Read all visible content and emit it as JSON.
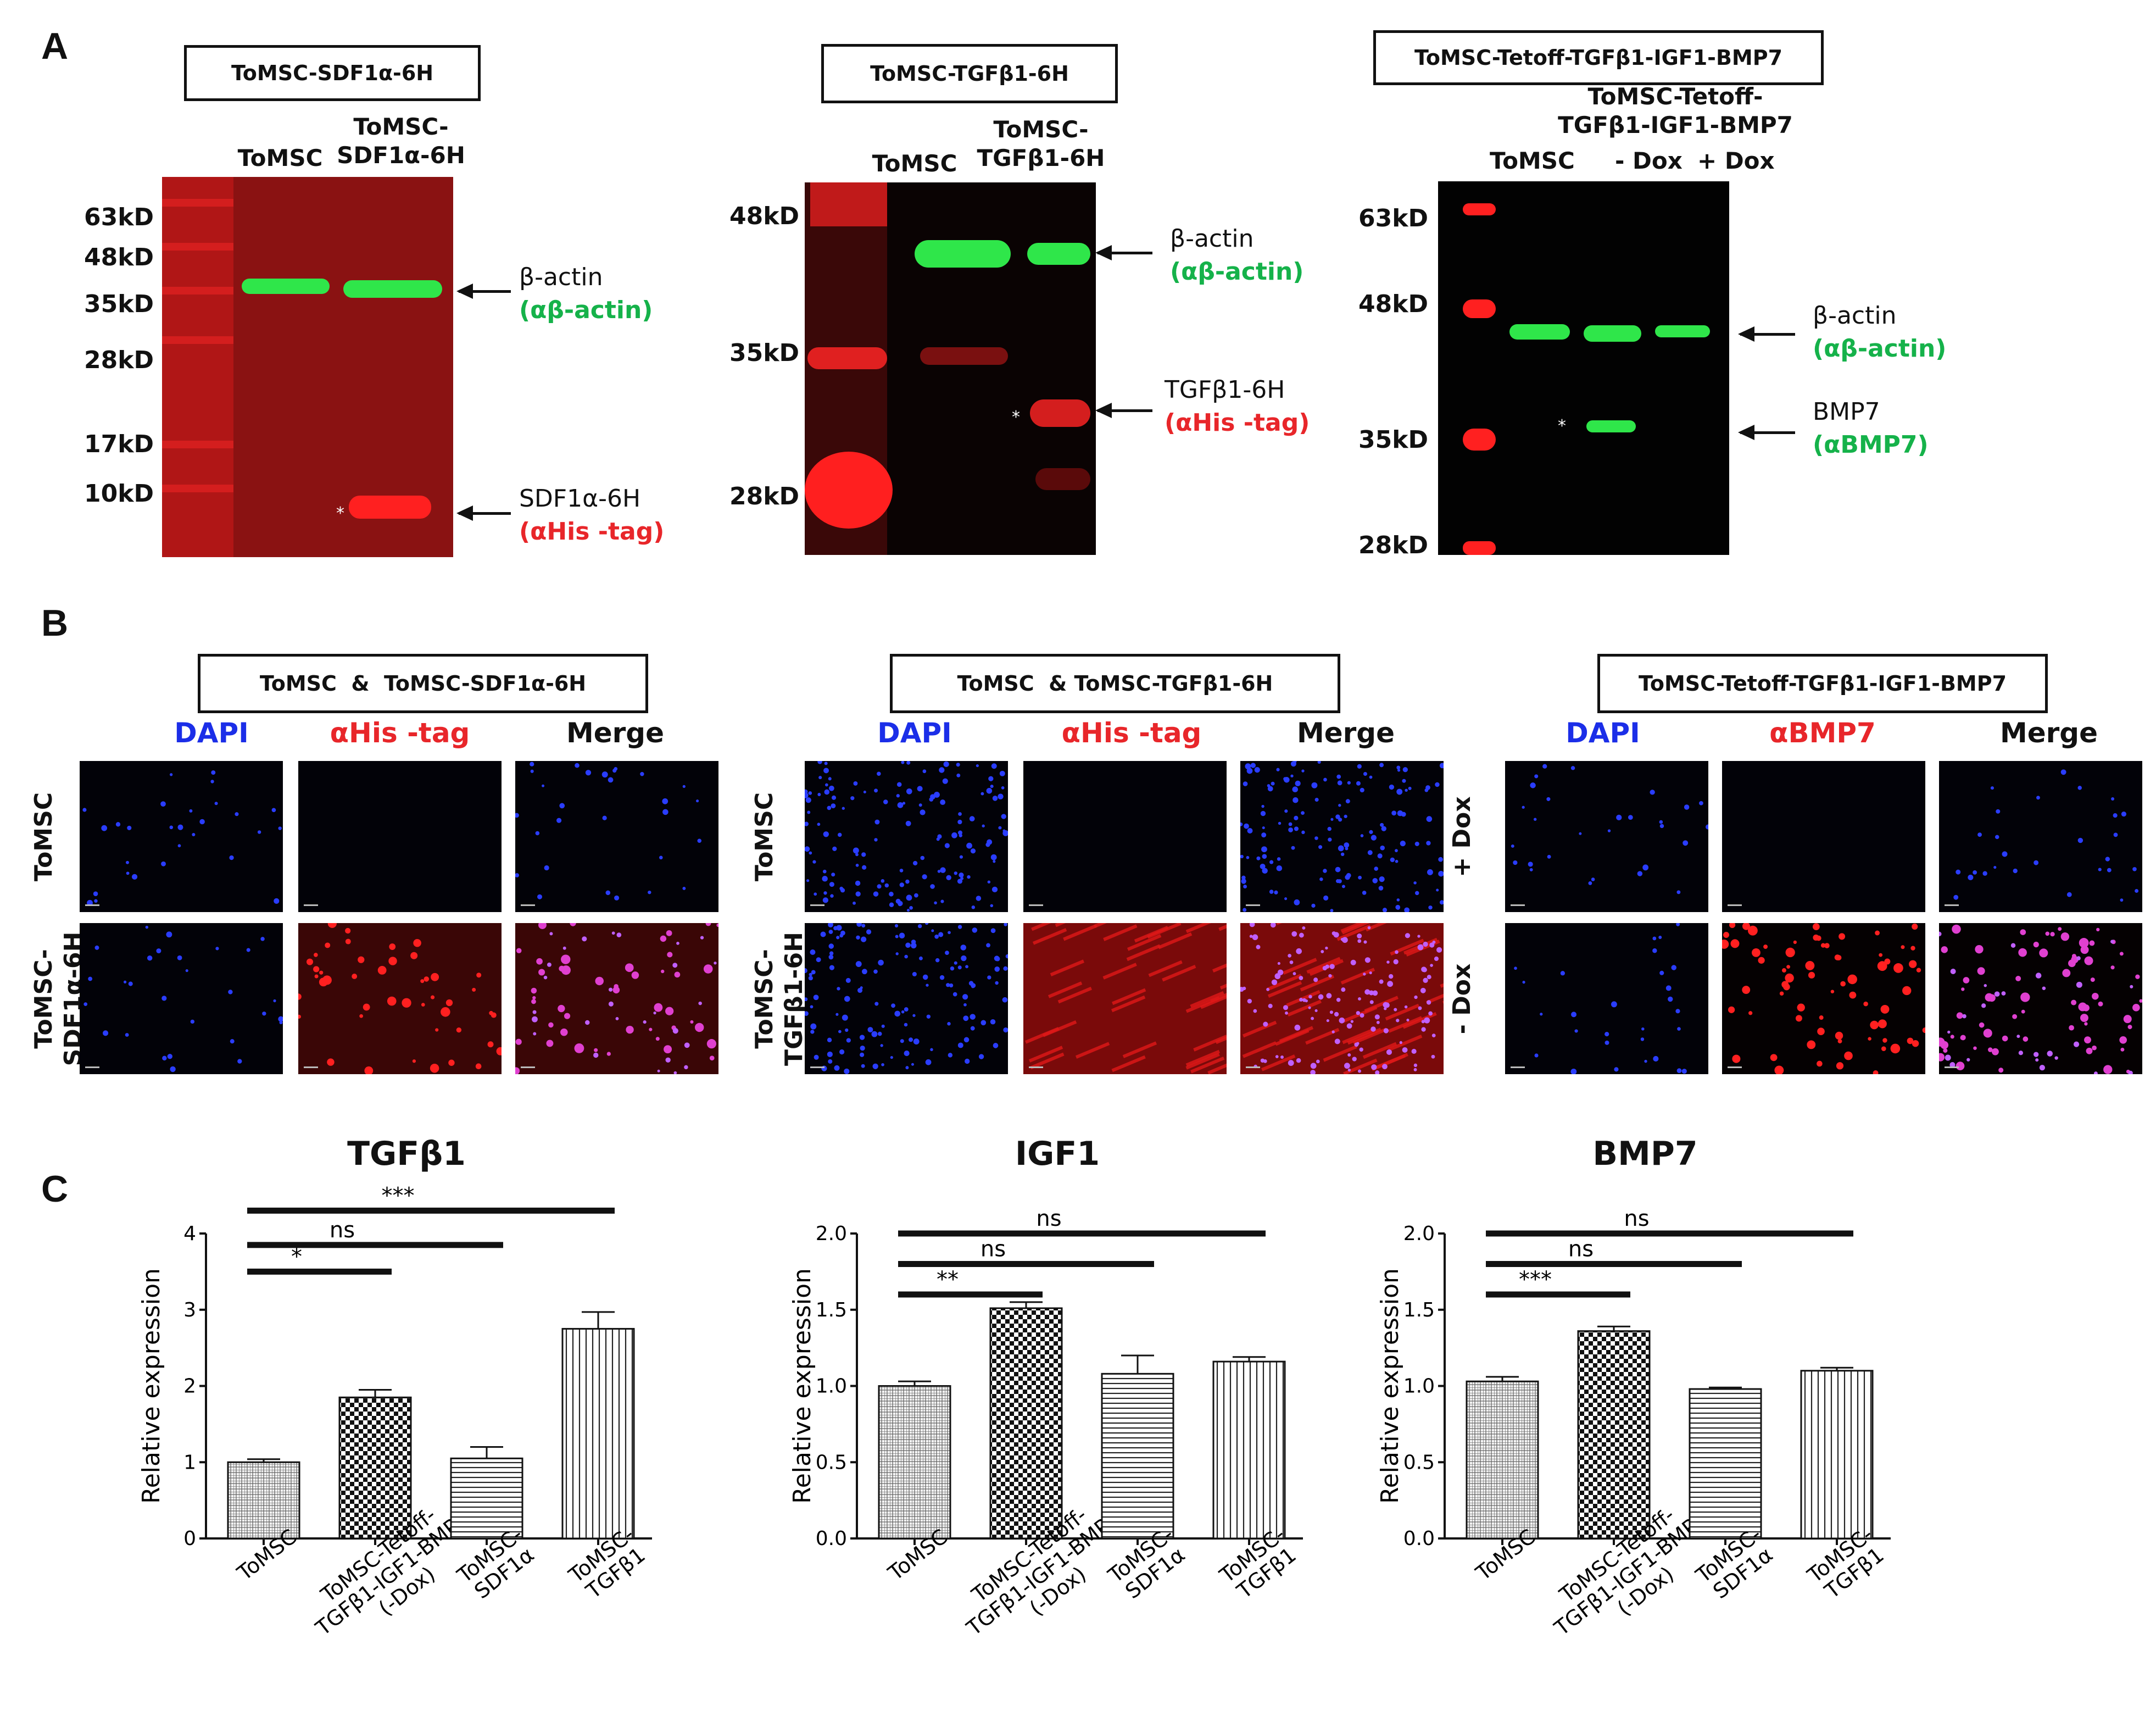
{
  "panel_letters": {
    "a": "A",
    "b": "B",
    "c": "C"
  },
  "western": [
    {
      "box_title": "ToMSC-SDF1α-6H",
      "lanes": [
        "ToMSC",
        "ToMSC-\nSDF1α-6H"
      ],
      "markers": [
        "63kD",
        "48kD",
        "35kD",
        "28kD",
        "17kD",
        "10kD"
      ],
      "annotations": [
        {
          "label": "β-actin",
          "antibody": "(αβ-actin)",
          "color": "green"
        },
        {
          "label": "SDF1α-6H",
          "antibody": "(αHis -tag)",
          "color": "red"
        }
      ],
      "asterisk": "*"
    },
    {
      "box_title": "ToMSC-TGFβ1-6H",
      "lanes": [
        "ToMSC",
        "ToMSC-\nTGFβ1-6H"
      ],
      "markers": [
        "48kD",
        "35kD",
        "28kD"
      ],
      "annotations": [
        {
          "label": "β-actin",
          "antibody": "(αβ-actin)",
          "color": "green"
        },
        {
          "label": "TGFβ1-6H",
          "antibody": "(αHis -tag)",
          "color": "red"
        }
      ],
      "asterisk": "*"
    },
    {
      "box_title": "ToMSC-Tetoff-TGFβ1-IGF1-BMP7",
      "group_label": "ToMSC-Tetoff-\nTGFβ1-IGF1-BMP7",
      "lanes": [
        "ToMSC",
        "- Dox",
        "+ Dox"
      ],
      "markers": [
        "63kD",
        "48kD",
        "35kD",
        "28kD"
      ],
      "annotations": [
        {
          "label": "β-actin",
          "antibody": "(αβ-actin)",
          "color": "green"
        },
        {
          "label": "BMP7",
          "antibody": "(αBMP7)",
          "color": "green"
        }
      ],
      "asterisk": "*"
    }
  ],
  "immuno": [
    {
      "box_title": "ToMSC  &  ToMSC-SDF1α-6H",
      "columns": [
        "DAPI",
        "αHis -tag",
        "Merge"
      ],
      "rows": [
        "ToMSC",
        "ToMSC-\nSDF1α-6H"
      ]
    },
    {
      "box_title": "ToMSC  & ToMSC-TGFβ1-6H",
      "columns": [
        "DAPI",
        "αHis -tag",
        "Merge"
      ],
      "rows": [
        "ToMSC",
        "ToMSC-\nTGFβ1-6H"
      ]
    },
    {
      "box_title": "ToMSC-Tetoff-TGFβ1-IGF1-BMP7",
      "columns": [
        "DAPI",
        "αBMP7",
        "Merge"
      ],
      "rows": [
        "+ Dox",
        "- Dox"
      ]
    }
  ],
  "colors": {
    "dapi": "#1b2ee8",
    "red": "#e8262a",
    "green": "#15b24a"
  },
  "chart_data": [
    {
      "type": "bar",
      "title": "TGFβ1",
      "ylabel": "Relative expression",
      "ylim": [
        0,
        4
      ],
      "yticks": [
        "0",
        "1",
        "2",
        "3",
        "4"
      ],
      "categories": [
        "ToMSC",
        "ToMSC-Tetoff-\nTGFβ1-IGF1-BMP7\n(-Dox)",
        "ToMSC-\nSDF1α",
        "ToMSC-\nTGFβ1"
      ],
      "values": [
        1.0,
        1.85,
        1.05,
        2.75
      ],
      "errors": [
        0.04,
        0.1,
        0.15,
        0.22
      ],
      "patterns": [
        "grid",
        "checker",
        "hlines",
        "vlines"
      ],
      "significance": [
        {
          "from": 0,
          "to": 1,
          "label": "*"
        },
        {
          "from": 0,
          "to": 2,
          "label": "ns"
        },
        {
          "from": 0,
          "to": 3,
          "label": "***"
        }
      ]
    },
    {
      "type": "bar",
      "title": "IGF1",
      "ylabel": "Relative expression",
      "ylim": [
        0,
        2
      ],
      "yticks": [
        "0.0",
        "0.5",
        "1.0",
        "1.5",
        "2.0"
      ],
      "categories": [
        "ToMSC",
        "ToMSC-Tetoff-\nTGFβ1-IGF1-BMP7\n(-Dox)",
        "ToMSC-\nSDF1α",
        "ToMSC-\nTGFβ1"
      ],
      "values": [
        1.0,
        1.51,
        1.08,
        1.16
      ],
      "errors": [
        0.03,
        0.04,
        0.12,
        0.03
      ],
      "patterns": [
        "grid",
        "checker",
        "hlines",
        "vlines"
      ],
      "significance": [
        {
          "from": 0,
          "to": 1,
          "label": "**"
        },
        {
          "from": 0,
          "to": 2,
          "label": "ns"
        },
        {
          "from": 0,
          "to": 3,
          "label": "ns"
        }
      ]
    },
    {
      "type": "bar",
      "title": "BMP7",
      "ylabel": "Relative expression",
      "ylim": [
        0,
        2
      ],
      "yticks": [
        "0.0",
        "0.5",
        "1.0",
        "1.5",
        "2.0"
      ],
      "categories": [
        "ToMSC",
        "ToMSC-Tetoff-\nTGFβ1-IGF1-BMP7\n(-Dox)",
        "ToMSC-\nSDF1α",
        "ToMSC-\nTGFβ1"
      ],
      "values": [
        1.03,
        1.36,
        0.98,
        1.1
      ],
      "errors": [
        0.03,
        0.03,
        0.01,
        0.02
      ],
      "patterns": [
        "grid",
        "checker",
        "hlines",
        "vlines"
      ],
      "significance": [
        {
          "from": 0,
          "to": 1,
          "label": "***"
        },
        {
          "from": 0,
          "to": 2,
          "label": "ns"
        },
        {
          "from": 0,
          "to": 3,
          "label": "ns"
        }
      ]
    }
  ]
}
